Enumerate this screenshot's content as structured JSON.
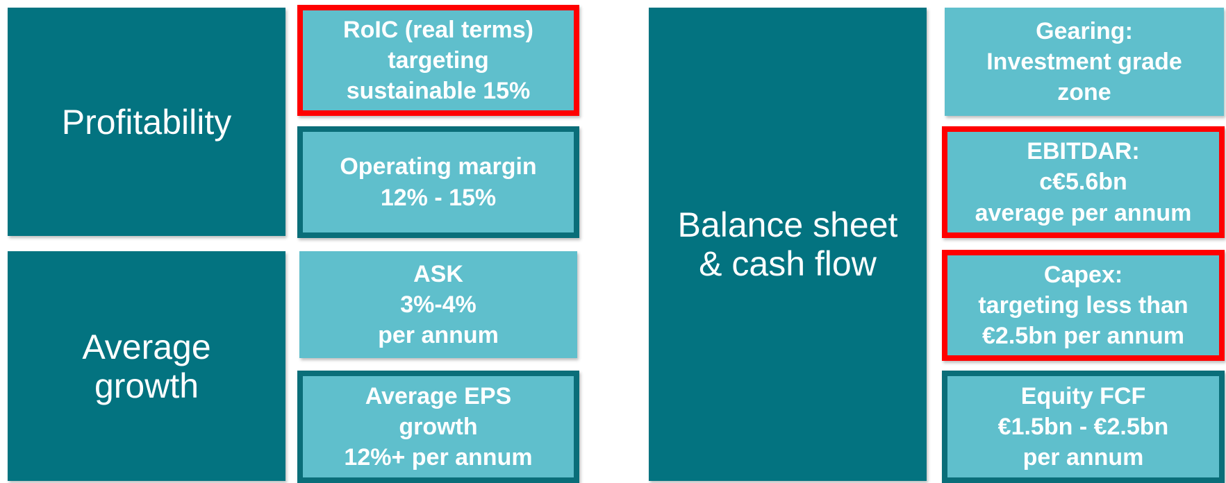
{
  "groups": [
    {
      "label": [
        "Profitability"
      ],
      "items": [
        [
          "RoIC (real terms)",
          "targeting",
          "sustainable 15%"
        ],
        [
          "Operating margin",
          "12% - 15%"
        ]
      ]
    },
    {
      "label": [
        "Average",
        "growth"
      ],
      "items": [
        [
          "ASK",
          "3%-4%",
          "per annum"
        ],
        [
          "Average EPS",
          "growth",
          "12%+ per annum"
        ]
      ]
    },
    {
      "label": [
        "Balance sheet",
        "& cash flow"
      ],
      "items": [
        [
          "Gearing:",
          "Investment grade",
          "zone"
        ],
        [
          "EBITDAR:",
          "c€5.6bn",
          "average per annum"
        ],
        [
          "Capex:",
          "targeting less than",
          "€2.5bn per annum"
        ],
        [
          "Equity FCF",
          "€1.5bn - €2.5bn",
          "per annum"
        ]
      ]
    }
  ]
}
